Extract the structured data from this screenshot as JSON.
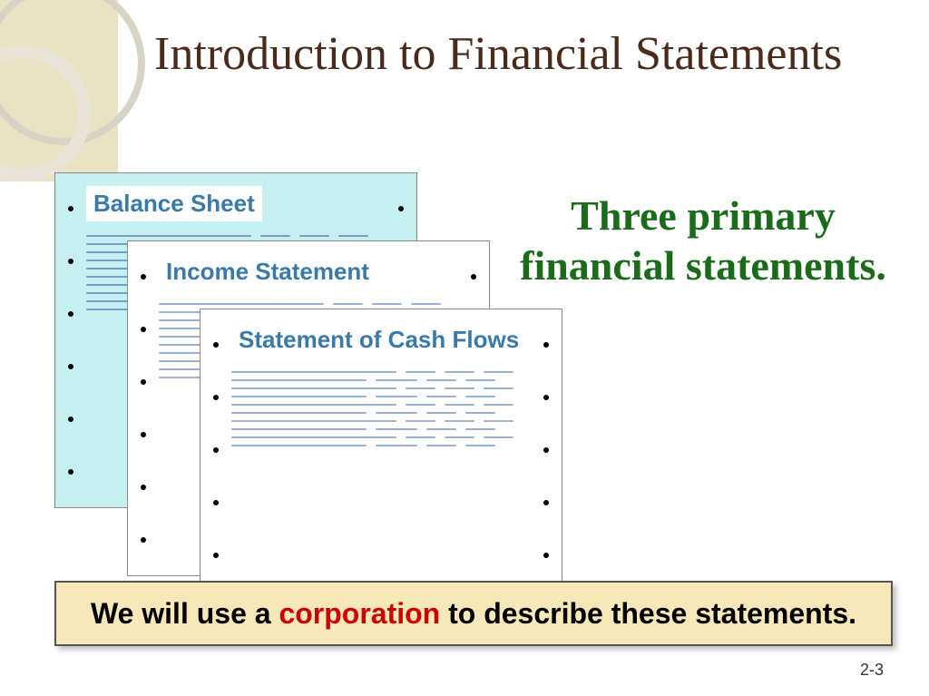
{
  "title": {
    "text": "Introduction to Financial Statements",
    "color": "#4a2a1a"
  },
  "callout": {
    "text": "Three primary financial statements.",
    "color": "#1a6b1a"
  },
  "documents": [
    {
      "title": "Balance Sheet",
      "title_color": "#3a7aa8",
      "bg_color": "#c6f0f0",
      "line_color": "#7a9ac8",
      "holes": 6
    },
    {
      "title": "Income Statement",
      "title_color": "#3a7aa8",
      "bg_color": "#ffffff",
      "line_color": "#9ab0d4",
      "holes": 6
    },
    {
      "title": "Statement of Cash Flows",
      "title_color": "#3a7aa8",
      "bg_color": "#ffffff",
      "line_color": "#9ab0d4",
      "holes": 6
    }
  ],
  "bottom_box": {
    "prefix": "We will use a ",
    "highlight": "corporation",
    "suffix": " to describe these statements.",
    "bg_color": "#f8e7b8",
    "text_color": "#000000",
    "highlight_color": "#cc0000"
  },
  "page_number": "2-3",
  "decorative": {
    "square_color": "#e9e3c4",
    "ring_colors": [
      "#d8d4c5",
      "#e8e5d8"
    ]
  },
  "line_pattern": {
    "rows": 10,
    "segments": [
      [
        0.55,
        0.1,
        0.1,
        0.1
      ],
      [
        0.45,
        0.14,
        0.1,
        0.1
      ],
      [
        0.55,
        0.1,
        0.1,
        0.1
      ],
      [
        0.45,
        0.14,
        0.1,
        0.1
      ],
      [
        0.55,
        0.1,
        0.1,
        0.1
      ],
      [
        0.45,
        0.14,
        0.1,
        0.1
      ],
      [
        0.55,
        0.1,
        0.1,
        0.1
      ],
      [
        0.45,
        0.14,
        0.1,
        0.1
      ],
      [
        0.55,
        0.1,
        0.1,
        0.1
      ],
      [
        0.45,
        0.14,
        0.1,
        0.1
      ]
    ]
  }
}
